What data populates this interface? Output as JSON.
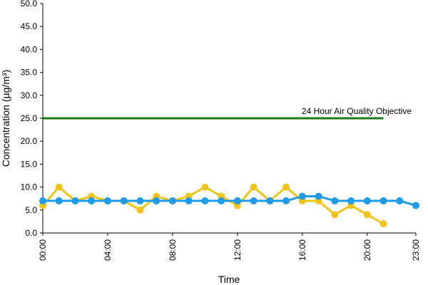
{
  "chart_data": {
    "type": "line",
    "xlabel": "Time",
    "ylabel": "Concentration (µg/m³)",
    "ylim": [
      0,
      50
    ],
    "y_ticks": [
      "0.0",
      "5.0",
      "10.0",
      "15.0",
      "20.0",
      "25.0",
      "30.0",
      "35.0",
      "40.0",
      "45.0",
      "50.0"
    ],
    "x_ticks": [
      "00:00",
      "04:00",
      "08:00",
      "12:00",
      "16:00",
      "20:00",
      "23:00"
    ],
    "x_hours": [
      0,
      1,
      2,
      3,
      4,
      5,
      6,
      7,
      8,
      9,
      10,
      11,
      12,
      13,
      14,
      15,
      16,
      17,
      18,
      19,
      20,
      21,
      22,
      23
    ],
    "grid": false,
    "series": [
      {
        "color": "#f0c419",
        "values": [
          6,
          10,
          7,
          8,
          7,
          7,
          5,
          8,
          7,
          8,
          10,
          8,
          6,
          10,
          7,
          10,
          7,
          7,
          4,
          6,
          4,
          2,
          null,
          null
        ]
      },
      {
        "color": "#1e9be9",
        "values": [
          7,
          7,
          7,
          7,
          7,
          7,
          7,
          7,
          7,
          7,
          7,
          7,
          7,
          7,
          7,
          7,
          8,
          8,
          7,
          7,
          7,
          7,
          7,
          6
        ]
      }
    ],
    "objective": {
      "label": "24 Hour Air Quality Objective",
      "value": 25,
      "x_start": 0,
      "x_end": 21,
      "color": "#1a7a1a"
    }
  }
}
